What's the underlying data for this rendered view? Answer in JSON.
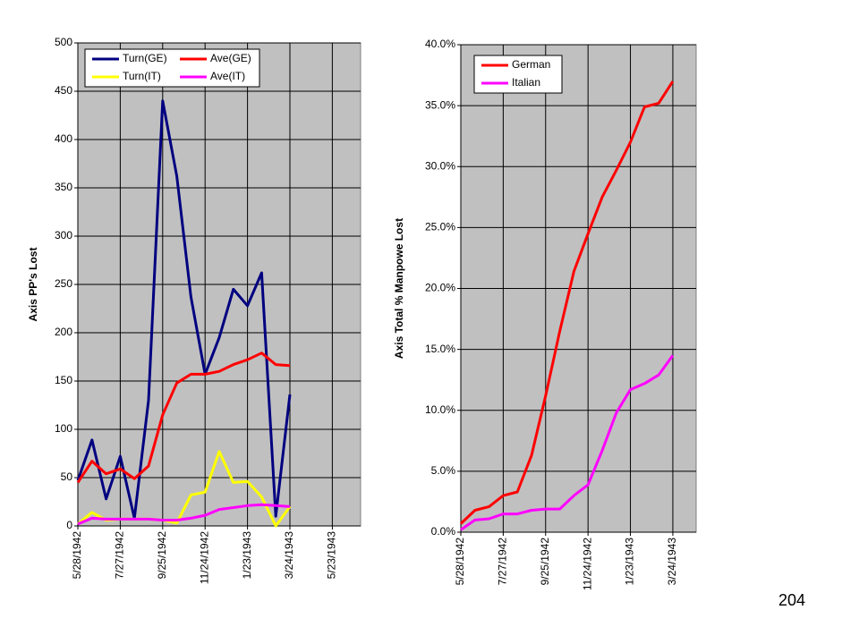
{
  "chart_data": [
    {
      "type": "line",
      "y_label": "Axis PP's Lost",
      "categories": [
        "5/28/1942",
        null,
        null,
        "7/27/1942",
        null,
        null,
        "9/25/1942",
        null,
        null,
        "11/24/1942",
        null,
        null,
        "1/23/1943",
        null,
        null,
        "3/24/1943",
        null,
        null,
        "5/23/1943",
        null,
        null
      ],
      "series": [
        {
          "name": "Turn(GE)",
          "color": "#000080",
          "values": [
            47,
            89,
            28,
            72,
            8,
            130,
            440,
            362,
            237,
            157,
            195,
            245,
            228,
            262,
            10,
            136,
            null,
            null,
            null,
            null,
            null
          ]
        },
        {
          "name": "Ave(GE)",
          "color": "#ff0000",
          "values": [
            45,
            67,
            54,
            59,
            49,
            62,
            115,
            148,
            157,
            157,
            160,
            167,
            172,
            179,
            167,
            166,
            null,
            null,
            null,
            null,
            null
          ]
        },
        {
          "name": "Turn(IT)",
          "color": "#ffff00",
          "values": [
            2,
            14,
            6,
            7,
            7,
            7,
            6,
            3,
            32,
            35,
            77,
            45,
            46,
            30,
            0,
            20,
            null,
            null,
            null,
            null,
            null
          ]
        },
        {
          "name": "Ave(IT)",
          "color": "#ff00ff",
          "values": [
            2,
            8,
            7,
            7,
            7,
            7,
            6,
            6,
            8,
            11,
            17,
            19,
            21,
            22,
            21,
            20,
            null,
            null,
            null,
            null,
            null
          ]
        }
      ],
      "ylim": [
        0,
        500
      ],
      "yticks": [
        0,
        50,
        100,
        150,
        200,
        250,
        300,
        350,
        400,
        450,
        500
      ],
      "grid": true,
      "legend": "top-left",
      "legend_columns": 2
    },
    {
      "type": "line",
      "y_label": "Axis Total % Manpowe Lost",
      "categories": [
        "5/28/1942",
        null,
        null,
        "7/27/1942",
        null,
        null,
        "9/25/1942",
        null,
        null,
        "11/24/1942",
        null,
        null,
        "1/23/1943",
        null,
        null,
        "3/24/1943"
      ],
      "series": [
        {
          "name": "German",
          "color": "#ff0000",
          "values": [
            0.7,
            1.8,
            2.1,
            3.0,
            3.3,
            6.3,
            11.2,
            16.5,
            21.4,
            24.5,
            27.5,
            29.7,
            32.0,
            34.9,
            35.2,
            37.0
          ]
        },
        {
          "name": "Italian",
          "color": "#ff00ff",
          "values": [
            0.2,
            1.0,
            1.1,
            1.5,
            1.5,
            1.8,
            1.9,
            1.9,
            3.0,
            3.9,
            6.7,
            9.8,
            11.7,
            12.2,
            12.9,
            14.5
          ]
        }
      ],
      "ylim": [
        0,
        40
      ],
      "yticks": [
        {
          "value": 0,
          "label": "0.0%"
        },
        {
          "value": 5,
          "label": "5.0%"
        },
        {
          "value": 10,
          "label": "10.0%"
        },
        {
          "value": 15,
          "label": "15.0%"
        },
        {
          "value": 20,
          "label": "20.0%"
        },
        {
          "value": 25,
          "label": "25.0%"
        },
        {
          "value": 30,
          "label": "30.0%"
        },
        {
          "value": 35,
          "label": "35.0%"
        },
        {
          "value": 40,
          "label": "40.0%"
        }
      ],
      "grid": true,
      "legend": "top-left",
      "legend_columns": 1
    }
  ],
  "page_number": "204"
}
